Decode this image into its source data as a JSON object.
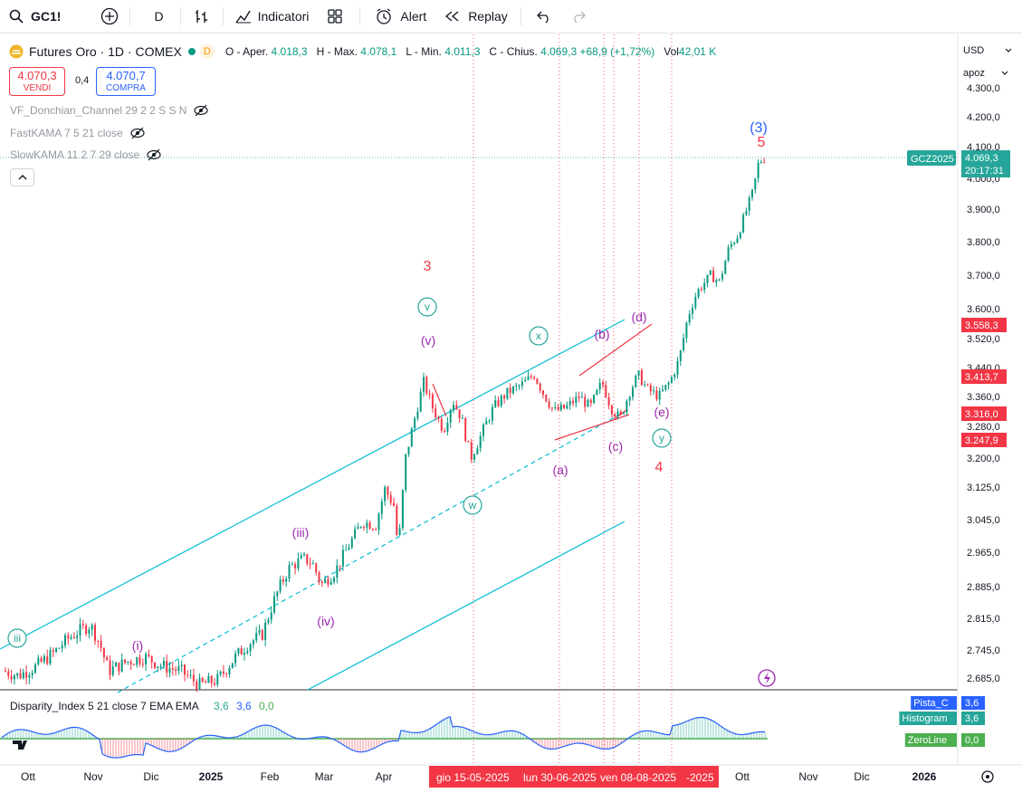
{
  "toolbar": {
    "symbol": "GC1!",
    "interval": "D",
    "indicators_label": "Indicatori",
    "alert_label": "Alert",
    "replay_label": "Replay"
  },
  "legend": {
    "title": "Futures Oro · 1D · COMEX",
    "open_label": "O - Aper.",
    "open": "4.018,3",
    "high_label": "H - Max.",
    "high": "4.078,1",
    "low_label": "L - Min.",
    "low": "4.011,3",
    "close_label": "C - Chius.",
    "close": "4.069,3",
    "change": "+68,9 (+1,72%)",
    "vol_label": "Vol",
    "vol": "42,01 K",
    "sell_price": "4.070,3",
    "sell_label": "VENDI",
    "spread": "0,4",
    "buy_price": "4.070,7",
    "buy_label": "COMPRA"
  },
  "indicators": [
    {
      "name": "VF_Donchian_Channel 29 2 2 S S N"
    },
    {
      "name": "FastKAMA 7 5 21 close"
    },
    {
      "name": "SlowKAMA 11 2 7 29 close"
    }
  ],
  "price_axis": {
    "currency": "USD",
    "scale_mode": "apoz",
    "ticks": [
      "4.300,0",
      "4.200,0",
      "4.100,0",
      "4.000,0",
      "3.900,0",
      "3.800,0",
      "3.700,0",
      "3.600,0",
      "3.520,0",
      "3.440,0",
      "3.360,0",
      "3.280,0",
      "3.200,0",
      "3.125,0",
      "3.045,0",
      "2.965,0",
      "2.885,0",
      "2.815,0",
      "2.745,0",
      "2.685,0"
    ],
    "tags": [
      {
        "label": "GCZ2025",
        "value": "4.069,3",
        "time": "20:17:31",
        "color": "#26a69a"
      },
      {
        "value": "3.558,3",
        "color": "#f23645"
      },
      {
        "value": "3.413,7",
        "color": "#f23645"
      },
      {
        "value": "3.316,0",
        "color": "#f23645"
      },
      {
        "value": "3.247,9",
        "color": "#f23645"
      }
    ]
  },
  "time_axis": {
    "labels": [
      "Ott",
      "Nov",
      "Dic",
      "2025",
      "Feb",
      "Mar",
      "Apr",
      "Ott",
      "Nov",
      "Dic",
      "2026"
    ],
    "highlight": [
      "gio 15-05-2025",
      "lun 30-06-2025",
      "ven 08-08-2025",
      "-2025"
    ]
  },
  "waves": {
    "green": [
      "iii",
      "v",
      "x",
      "w",
      "y"
    ],
    "purple": [
      "(i)",
      "(iii)",
      "(iv)",
      "(v)",
      "(a)",
      "(b)",
      "(c)",
      "(d)",
      "(e)"
    ],
    "red": [
      "3",
      "4",
      "5"
    ],
    "blue": [
      "(3)"
    ]
  },
  "oscillator": {
    "title": "Disparity_Index 5 21 close 7 EMA EMA",
    "v1": "3,6",
    "v2": "3,6",
    "v3": "0,0",
    "tags": [
      {
        "label": "Pista_C",
        "value": "3,6"
      },
      {
        "label": "Histogram",
        "value": "3,6"
      },
      {
        "label": "ZeroLine",
        "value": "0,0"
      }
    ]
  },
  "colors": {
    "up": "#089981",
    "down": "#f23645",
    "channel": "#00bcd4",
    "purple": "#9c27b0",
    "red": "#f23645",
    "blue": "#2962ff"
  }
}
